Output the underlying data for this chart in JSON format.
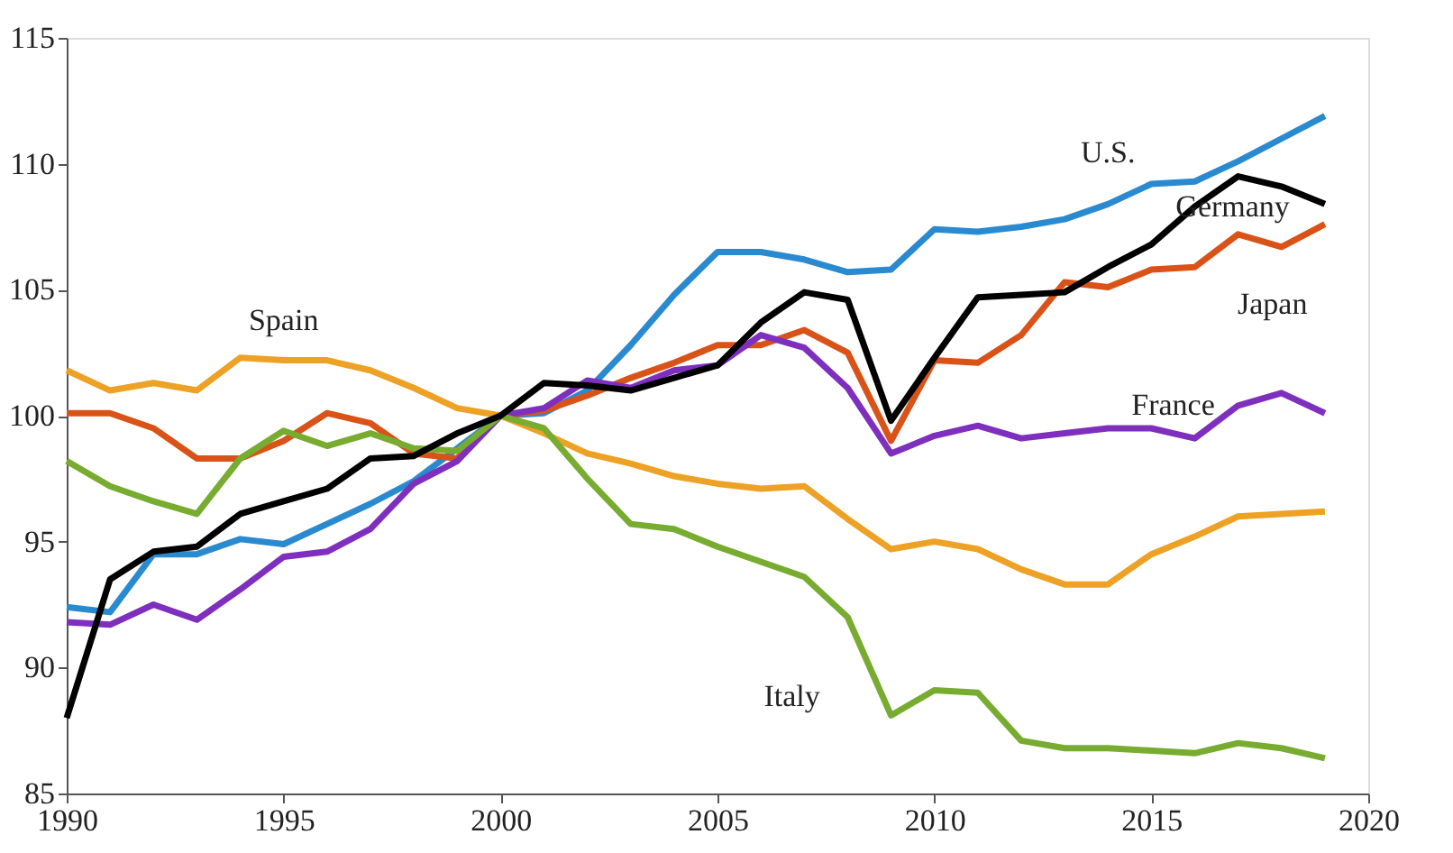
{
  "chart_data": {
    "type": "line",
    "x": [
      1990,
      1991,
      1992,
      1993,
      1994,
      1995,
      1996,
      1997,
      1998,
      1999,
      2000,
      2001,
      2002,
      2003,
      2004,
      2005,
      2006,
      2007,
      2008,
      2009,
      2010,
      2011,
      2012,
      2013,
      2014,
      2015,
      2016,
      2017,
      2018,
      2019
    ],
    "series": [
      {
        "color": "#2a8ad0",
        "values": [
          92.4,
          92.2,
          94.5,
          94.5,
          95.1,
          94.9,
          95.7,
          96.5,
          97.4,
          98.7,
          100,
          100.1,
          101,
          102.8,
          104.8,
          106.5,
          106.5,
          106.2,
          105.7,
          105.8,
          107.4,
          107.3,
          107.5,
          107.8,
          108.4,
          109.2,
          109.3,
          110.1,
          111.0,
          111.9
        ]
      },
      {
        "color": "#d95319",
        "values": [
          100.1,
          100.1,
          99.5,
          98.3,
          98.3,
          99.0,
          100.1,
          99.7,
          98.5,
          98.3,
          100,
          100.2,
          100.8,
          101.5,
          102.1,
          102.8,
          102.8,
          103.4,
          102.5,
          99,
          102.2,
          102.1,
          103.2,
          105.3,
          105.1,
          105.8,
          105.9,
          107.2,
          106.7,
          107.6
        ]
      },
      {
        "color": "#7e2fbe",
        "values": [
          91.8,
          91.7,
          92.5,
          91.9,
          93.1,
          94.4,
          94.6,
          95.5,
          97.3,
          98.2,
          100,
          100.3,
          101.4,
          101.1,
          101.8,
          102,
          103.2,
          102.7,
          101.1,
          98.5,
          99.2,
          99.6,
          99.1,
          99.3,
          99.5,
          99.5,
          99.1,
          100.4,
          100.9,
          100.1
        ]
      },
      {
        "color": "#eda125",
        "values": [
          101.8,
          101,
          101.3,
          101,
          102.3,
          102.2,
          102.2,
          101.8,
          101.1,
          100.3,
          100,
          99.3,
          98.5,
          98.1,
          97.6,
          97.3,
          97.1,
          97.2,
          95.9,
          94.7,
          95,
          94.7,
          93.9,
          93.3,
          93.3,
          94.5,
          95.2,
          96,
          96.1,
          96.2
        ]
      },
      {
        "color": "#77ac30",
        "values": [
          98.2,
          97.2,
          96.6,
          96.1,
          98.3,
          99.4,
          98.8,
          99.3,
          98.7,
          98.6,
          100,
          99.5,
          97.5,
          95.7,
          95.5,
          94.8,
          94.2,
          93.6,
          92,
          88.1,
          89.1,
          89,
          87.1,
          86.8,
          86.8,
          86.7,
          86.6,
          87,
          86.8,
          86.4
        ]
      },
      {
        "color": "#000000",
        "values": [
          88,
          93.5,
          94.6,
          94.8,
          96.1,
          96.6,
          97.1,
          98.3,
          98.4,
          99.3,
          100,
          101.3,
          101.2,
          101,
          101.5,
          102,
          103.7,
          104.9,
          104.6,
          99.8,
          102.3,
          104.7,
          104.8,
          104.9,
          105.9,
          106.8,
          108.3,
          109.5,
          109.1,
          108.4
        ]
      }
    ],
    "annotations": [
      {
        "text": "U.S.",
        "x": 2014,
        "y": 108.4
      },
      {
        "text": "Germany",
        "x": 2017,
        "y": 109.5
      },
      {
        "text": "Japan",
        "x": 2018,
        "y": 106.7
      },
      {
        "text": "France",
        "x": 2016,
        "y": 99.1
      },
      {
        "text": "Spain",
        "x": 1995,
        "y": 102.2
      },
      {
        "text": "Italy",
        "x": 2009,
        "y": 88.1
      }
    ],
    "xlim": [
      1990,
      2020
    ],
    "xticks": [
      1990,
      1995,
      2000,
      2005,
      2010,
      2015,
      2020
    ],
    "ylim": [
      85,
      115
    ],
    "yticks": [
      85,
      90,
      95,
      100,
      105,
      110,
      115
    ],
    "grid": false,
    "line_style": "solid",
    "marker": "none"
  }
}
